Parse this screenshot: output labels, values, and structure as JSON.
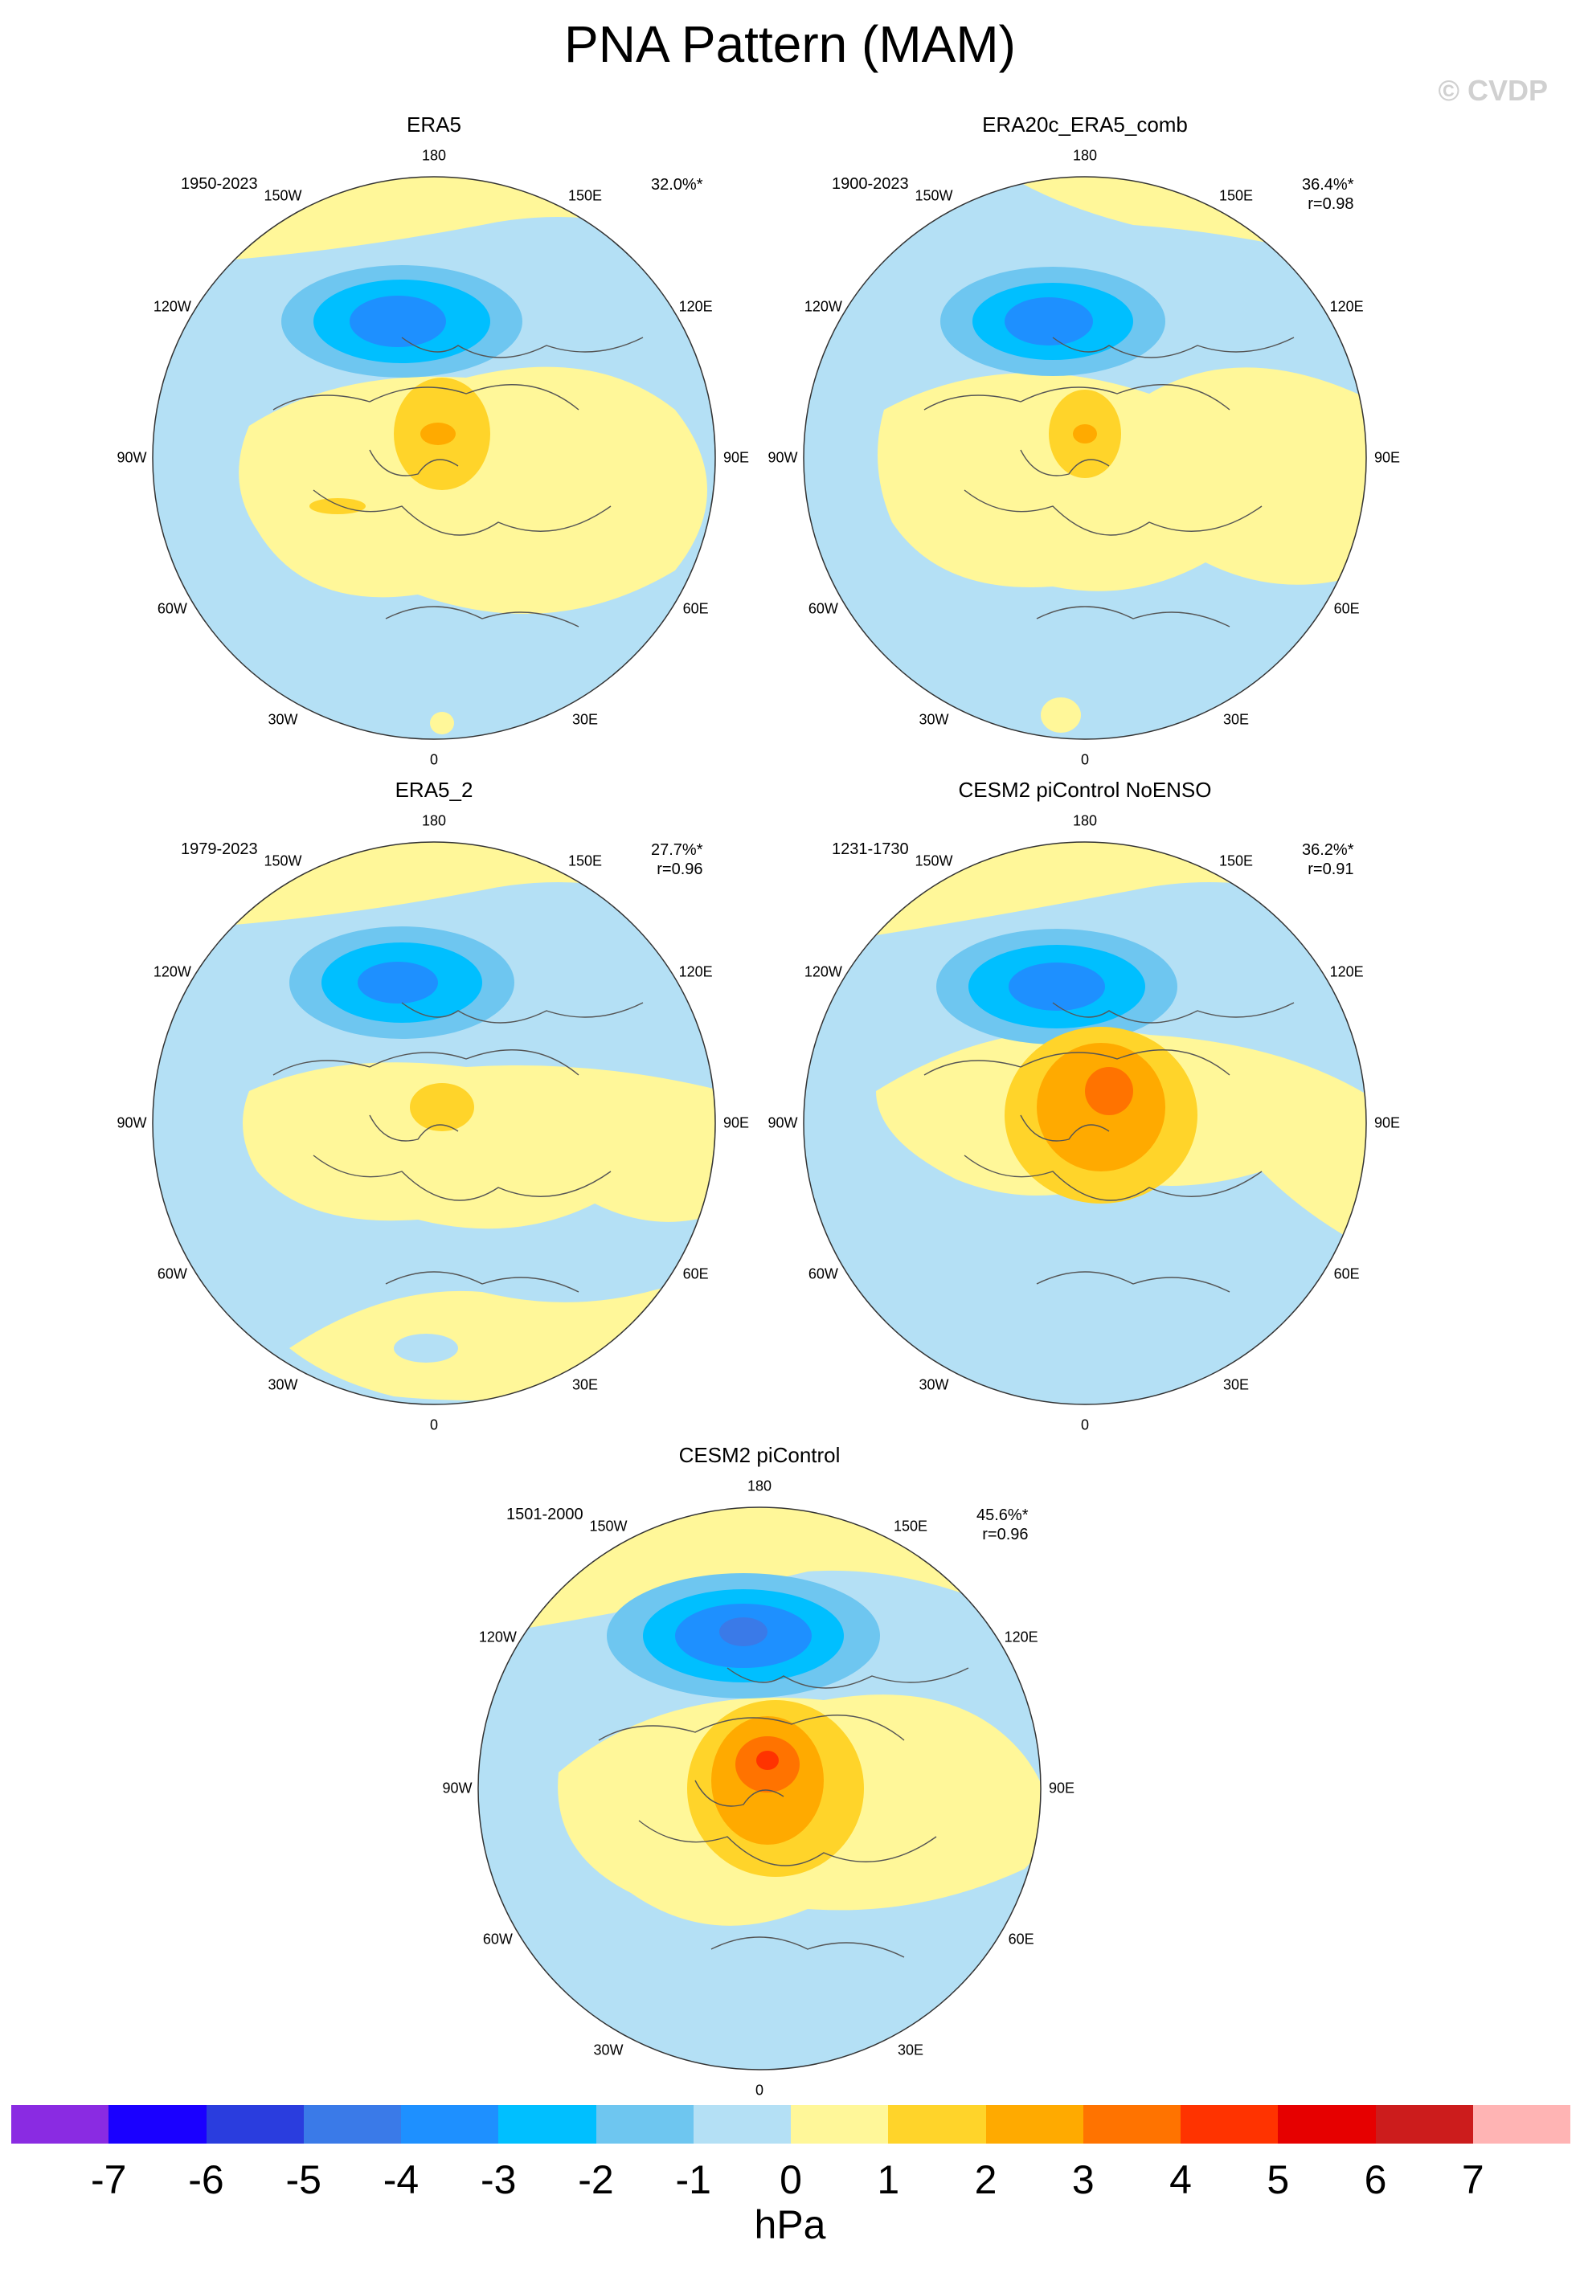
{
  "title": "PNA Pattern (MAM)",
  "copyright": "© CVDP",
  "panels": [
    {
      "title": "ERA5",
      "period": "1950-2023",
      "pct": "32.0%*",
      "r": ""
    },
    {
      "title": "ERA20c_ERA5_comb",
      "period": "1900-2023",
      "pct": "36.4%*",
      "r": "r=0.98"
    },
    {
      "title": "ERA5_2",
      "period": "1979-2023",
      "pct": "27.7%*",
      "r": "r=0.96"
    },
    {
      "title": "CESM2 piControl NoENSO",
      "period": "1231-1730",
      "pct": "36.2%*",
      "r": "r=0.91"
    },
    {
      "title": "CESM2 piControl",
      "period": "1501-2000",
      "pct": "45.6%*",
      "r": "r=0.96"
    }
  ],
  "lon_labels": {
    "n": "180",
    "nne": "150E",
    "ene": "120E",
    "e": "90E",
    "ese": "60E",
    "sse": "30E",
    "s": "0",
    "ssw": "30W",
    "wsw": "60W",
    "w": "90W",
    "wnw": "120W",
    "nnw": "150W"
  },
  "colorbar": {
    "colors": [
      "#8a2be2",
      "#1a00ff",
      "#2a3dde",
      "#3a7ae8",
      "#1e90ff",
      "#00bfff",
      "#6ec6f0",
      "#b4e0f5",
      "#fff799",
      "#ffd42a",
      "#ffaa00",
      "#ff7300",
      "#ff3300",
      "#e60000",
      "#cc1c1c",
      "#ffb4b4"
    ],
    "ticks": [
      "-7",
      "-6",
      "-5",
      "-4",
      "-3",
      "-2",
      "-1",
      "0",
      "1",
      "2",
      "3",
      "4",
      "5",
      "6",
      "7"
    ],
    "units": "hPa"
  }
}
